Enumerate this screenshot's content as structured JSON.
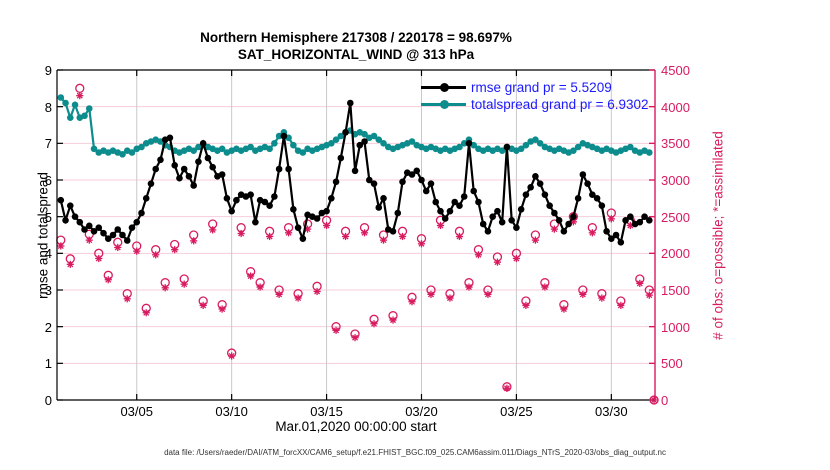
{
  "title": {
    "line1": "Northern Hemisphere 217308 / 220178 = 98.697%",
    "line2": "SAT_HORIZONTAL_WIND @ 313 hPa"
  },
  "footer": "data file: /Users/raeder/DAI/ATM_forcXX/CAM6_setup/f.e21.FHIST_BGC.f09_025.CAM6assim.011/Diags_NTrS_2020-03/obs_diag_output.nc",
  "legend": {
    "text_color": "#1a1aff",
    "items": [
      {
        "label": "rmse grand pr = 5.5209",
        "color": "#000000"
      },
      {
        "label": "totalspread grand pr = 6.9302",
        "color": "#0d8c8d"
      }
    ]
  },
  "colors": {
    "rmse": "#000000",
    "totalspread": "#0d8c8d",
    "obs": "#d81b60",
    "grid_h": "#f5cdd9",
    "grid_v": "#c9c9c9",
    "frame": "#000000"
  },
  "chart_data": {
    "type": "line",
    "title": "Northern Hemisphere 217308 / 220178 = 98.697% | SAT_HORIZONTAL_WIND @ 313 hPa",
    "x_axis": {
      "label": "Mar.01,2020 00:00:00 start",
      "unit": "days since 2020-03-01 00:00",
      "range": [
        -0.2,
        31.3
      ],
      "ticks": [
        {
          "t": 4,
          "label": "03/05"
        },
        {
          "t": 9,
          "label": "03/10"
        },
        {
          "t": 14,
          "label": "03/15"
        },
        {
          "t": 19,
          "label": "03/20"
        },
        {
          "t": 24,
          "label": "03/25"
        },
        {
          "t": 29,
          "label": "03/30"
        }
      ]
    },
    "y_left": {
      "label": "rmse and totalspread",
      "range": [
        0,
        9
      ],
      "tick_step": 1
    },
    "y_right": {
      "label": "# of obs: o=possible; *=assimilated",
      "range": [
        0,
        4500
      ],
      "tick_step": 500
    },
    "grid": "on",
    "legend_position": "top-right-inside",
    "series": [
      {
        "name": "rmse",
        "grand_pr": 5.5209,
        "color": "#000000",
        "axis": "left",
        "t_start": 0,
        "t_step": 0.25,
        "values": [
          5.45,
          4.9,
          5.3,
          5.0,
          4.85,
          4.65,
          4.75,
          4.6,
          4.7,
          4.55,
          4.4,
          4.5,
          4.65,
          4.5,
          4.35,
          4.7,
          4.85,
          5.1,
          5.5,
          5.9,
          6.3,
          6.55,
          7.1,
          7.15,
          6.4,
          6.05,
          6.3,
          6.1,
          5.85,
          6.5,
          7.0,
          6.6,
          6.35,
          6.1,
          6.15,
          5.5,
          5.15,
          5.45,
          5.6,
          5.55,
          5.6,
          4.85,
          5.45,
          5.4,
          5.3,
          5.55,
          6.3,
          7.2,
          6.3,
          5.2,
          4.7,
          4.4,
          5.05,
          5.0,
          4.95,
          5.1,
          5.15,
          5.5,
          5.95,
          6.6,
          7.3,
          8.1,
          6.25,
          6.95,
          7.05,
          6.0,
          5.9,
          5.25,
          5.5,
          4.65,
          4.6,
          5.1,
          5.95,
          6.2,
          6.15,
          6.25,
          6.0,
          5.7,
          5.9,
          5.4,
          5.15,
          4.95,
          5.15,
          5.4,
          5.3,
          5.55,
          7.0,
          5.7,
          5.4,
          4.8,
          4.6,
          5.0,
          5.15,
          4.85,
          6.9,
          4.9,
          4.7,
          5.2,
          5.6,
          5.8,
          6.1,
          5.9,
          5.6,
          5.3,
          5.1,
          4.9,
          4.6,
          4.8,
          5.0,
          5.5,
          6.15,
          5.9,
          5.6,
          5.5,
          5.3,
          4.6,
          4.4,
          4.5,
          4.3,
          4.9,
          5.0,
          4.8,
          4.85,
          5.0,
          4.9
        ]
      },
      {
        "name": "totalspread",
        "grand_pr": 6.9302,
        "color": "#0d8c8d",
        "axis": "left",
        "t_start": 0,
        "t_step": 0.25,
        "values": [
          8.25,
          8.1,
          7.7,
          8.05,
          7.7,
          7.75,
          7.95,
          6.85,
          6.75,
          6.8,
          6.75,
          6.8,
          6.75,
          6.7,
          6.8,
          6.75,
          6.85,
          6.9,
          7.0,
          7.05,
          7.1,
          7.05,
          6.95,
          6.9,
          6.8,
          6.75,
          6.8,
          6.85,
          6.8,
          6.9,
          6.95,
          6.9,
          6.85,
          6.8,
          6.85,
          6.75,
          6.8,
          6.85,
          6.8,
          6.85,
          6.9,
          6.8,
          6.85,
          6.9,
          6.85,
          7.0,
          7.2,
          7.3,
          7.15,
          6.95,
          6.8,
          6.75,
          6.85,
          6.8,
          6.85,
          6.9,
          6.95,
          7.0,
          7.1,
          7.2,
          7.3,
          7.35,
          7.25,
          7.3,
          7.25,
          7.15,
          7.2,
          7.1,
          7.0,
          6.9,
          6.85,
          6.9,
          6.95,
          7.0,
          7.05,
          6.95,
          6.9,
          6.85,
          6.9,
          6.85,
          6.8,
          6.85,
          6.8,
          6.85,
          6.9,
          7.0,
          7.1,
          6.95,
          6.85,
          6.8,
          6.85,
          6.8,
          6.85,
          6.8,
          6.9,
          6.85,
          6.8,
          6.85,
          6.95,
          7.05,
          7.1,
          7.0,
          6.9,
          6.85,
          6.8,
          6.85,
          6.8,
          6.75,
          6.8,
          6.9,
          7.0,
          6.95,
          6.9,
          6.85,
          6.8,
          6.85,
          6.8,
          6.75,
          6.8,
          6.85,
          6.9,
          6.8,
          6.75,
          6.8,
          6.75
        ]
      }
    ],
    "obs_counts": {
      "axis": "right",
      "color": "#d81b60",
      "possible_marker": "o",
      "assimilated_marker": "*",
      "t": [
        0,
        0.5,
        1,
        1.5,
        2,
        2.5,
        3,
        3.5,
        4,
        4.5,
        5,
        5.5,
        6,
        6.5,
        7,
        7.5,
        8,
        8.5,
        9,
        9.5,
        10,
        10.5,
        11,
        11.5,
        12,
        12.5,
        13,
        13.5,
        14,
        14.5,
        15,
        15.5,
        16,
        16.5,
        17,
        17.5,
        18,
        18.5,
        19,
        19.5,
        20,
        20.5,
        21,
        21.5,
        22,
        22.5,
        23,
        23.5,
        24,
        24.5,
        25,
        25.5,
        26,
        26.5,
        27,
        27.5,
        28,
        28.5,
        29,
        29.5,
        30,
        30.5,
        31,
        31.25
      ],
      "possible": [
        2180,
        1925,
        4250,
        2260,
        2000,
        1700,
        2150,
        1450,
        2100,
        1250,
        2050,
        1600,
        2120,
        1650,
        2250,
        1350,
        2400,
        1300,
        640,
        2350,
        1750,
        1600,
        2300,
        1500,
        2350,
        1450,
        2400,
        1550,
        2450,
        1000,
        2300,
        900,
        2350,
        1100,
        2250,
        1150,
        2300,
        1400,
        2200,
        1500,
        2450,
        1450,
        2300,
        1600,
        2050,
        1500,
        1950,
        180,
        2000,
        1350,
        2250,
        1600,
        2400,
        1300,
        2500,
        1500,
        2350,
        1450,
        2550,
        1350,
        2450,
        1650,
        1500,
        0
      ],
      "assimilated": [
        2100,
        1850,
        4150,
        2180,
        1930,
        1640,
        2080,
        1380,
        2030,
        1190,
        1980,
        1530,
        2050,
        1580,
        2170,
        1290,
        2320,
        1240,
        600,
        2270,
        1690,
        1540,
        2230,
        1440,
        2280,
        1390,
        2330,
        1480,
        2380,
        950,
        2230,
        850,
        2280,
        1040,
        2180,
        1090,
        2230,
        1340,
        2130,
        1440,
        2380,
        1390,
        2230,
        1540,
        1980,
        1440,
        1880,
        160,
        1930,
        1290,
        2180,
        1540,
        2330,
        1240,
        2430,
        1440,
        2280,
        1390,
        2470,
        1290,
        2380,
        1590,
        1430,
        0
      ]
    }
  }
}
